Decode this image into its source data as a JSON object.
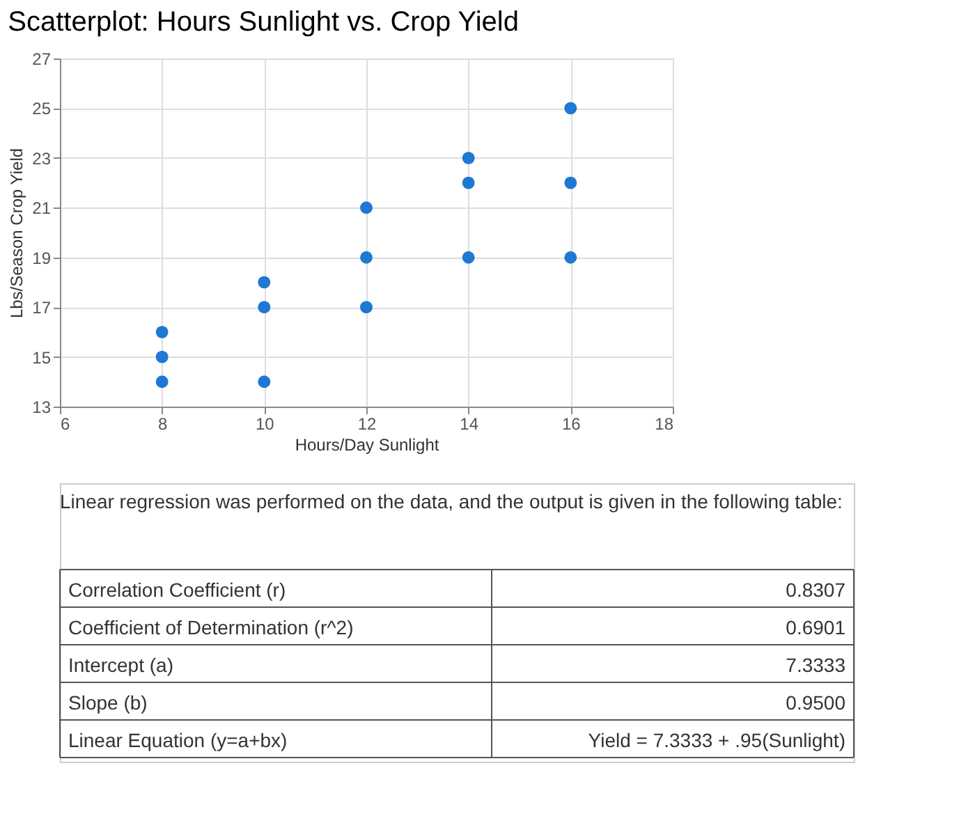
{
  "chart_data": {
    "type": "scatter",
    "title": "Scatterplot: Hours Sunlight vs. Crop Yield",
    "xlabel": "Hours/Day Sunlight",
    "ylabel": "Lbs/Season Crop Yield",
    "x": [
      8,
      8,
      8,
      10,
      10,
      10,
      12,
      12,
      12,
      14,
      14,
      14,
      16,
      16,
      16
    ],
    "series": [
      {
        "color": "#1f78d1",
        "values": [
          14,
          15,
          16,
          14,
          17,
          18,
          17,
          19,
          21,
          19,
          22,
          23,
          19,
          22,
          25
        ]
      }
    ],
    "xlim": [
      6,
      18
    ],
    "xticks": [
      6,
      8,
      10,
      12,
      14,
      16,
      18
    ],
    "ylim": [
      13,
      27
    ],
    "yticks": [
      13,
      15,
      17,
      19,
      21,
      23,
      25,
      27
    ],
    "grid": true,
    "marker": "circle",
    "annotations": [
      "Linear regression was performed on the data, and the output is given in the following table:",
      "Correlation Coefficient (r)",
      "0.8307",
      "Coefficient of Determination (r^2)",
      "0.6901",
      "Intercept (a)",
      "7.3333",
      "Slope (b)",
      "0.9500",
      "Linear Equation (y=a+bx)",
      "Yield = 7.3333 + .95(Sunlight)"
    ]
  }
}
